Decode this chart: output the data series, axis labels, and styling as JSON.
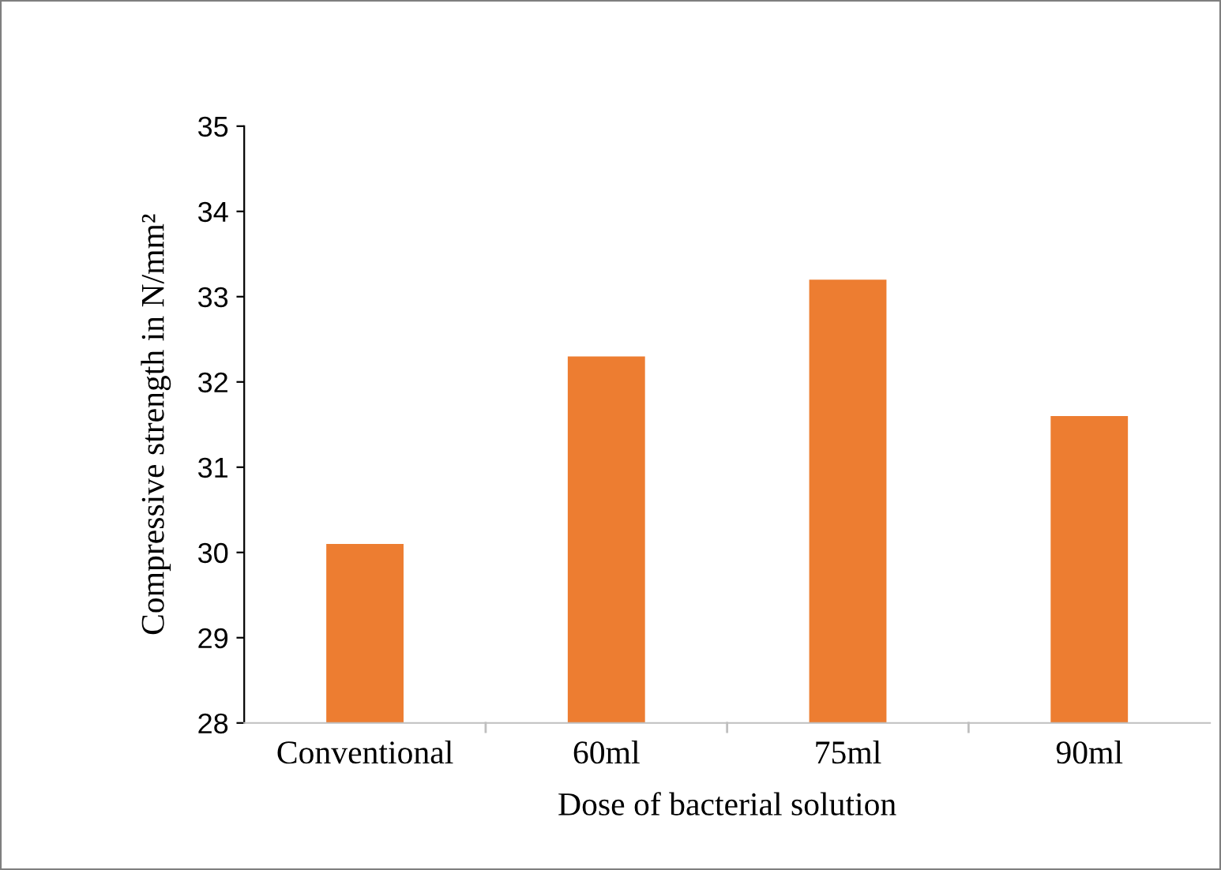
{
  "chart_data": {
    "type": "bar",
    "xlabel": "Dose of bacterial solution",
    "ylabel": "Compressive strength in N/mm²",
    "categories": [
      "Conventional",
      "60ml",
      "75ml",
      "90ml"
    ],
    "values": [
      30.1,
      32.3,
      33.2,
      31.6
    ],
    "color": "#ed7d31",
    "ylim": [
      28,
      35
    ],
    "yticks": [
      28,
      29,
      30,
      31,
      32,
      33,
      34,
      35
    ],
    "grid": false
  }
}
